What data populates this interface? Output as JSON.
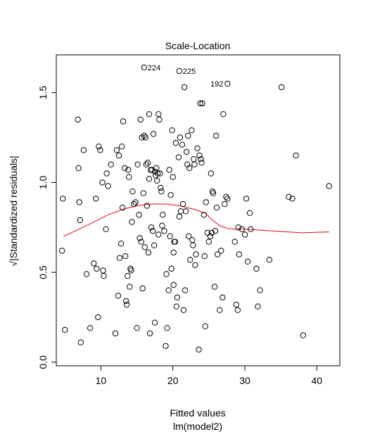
{
  "chart_data": {
    "type": "scatter",
    "title": "Scale-Location",
    "xlabel": "Fitted values",
    "subtitle": "lm(model2)",
    "ylabel": "√|Standardized residuals|",
    "xlim": [
      3.8,
      43.2
    ],
    "ylim": [
      -0.02,
      1.71
    ],
    "xticks": [
      "10",
      "20",
      "30",
      "40"
    ],
    "yticks": [
      "0.0",
      "0.5",
      "1.0",
      "1.5"
    ],
    "xtick_values": [
      10,
      20,
      30,
      40
    ],
    "ytick_values": [
      0.0,
      0.5,
      1.0,
      1.5
    ],
    "grid": false,
    "colors": {
      "points": "#000000",
      "smooth": "#e8202a",
      "frame": "#000000"
    },
    "labeled_points": [
      {
        "label": "224",
        "x": 16.0,
        "y": 1.64
      },
      {
        "label": "225",
        "x": 20.9,
        "y": 1.62
      },
      {
        "label": "192",
        "x": 27.6,
        "y": 1.55
      }
    ],
    "points": [
      [
        4.7,
        0.91
      ],
      [
        4.6,
        0.62
      ],
      [
        5.0,
        0.18
      ],
      [
        6.8,
        1.35
      ],
      [
        6.9,
        1.08
      ],
      [
        7.0,
        0.89
      ],
      [
        7.1,
        0.79
      ],
      [
        7.2,
        0.11
      ],
      [
        7.6,
        1.18
      ],
      [
        8.0,
        0.49
      ],
      [
        8.5,
        0.19
      ],
      [
        9.0,
        0.55
      ],
      [
        9.3,
        0.91
      ],
      [
        9.4,
        0.52
      ],
      [
        9.6,
        0.25
      ],
      [
        9.7,
        1.2
      ],
      [
        9.9,
        1.18
      ],
      [
        10.2,
        1.0
      ],
      [
        10.3,
        0.51
      ],
      [
        10.4,
        0.48
      ],
      [
        10.7,
        0.74
      ],
      [
        10.8,
        1.05
      ],
      [
        11.0,
        0.98
      ],
      [
        11.4,
        1.1
      ],
      [
        12.0,
        0.16
      ],
      [
        12.2,
        1.18
      ],
      [
        12.4,
        0.37
      ],
      [
        12.5,
        1.15
      ],
      [
        12.6,
        0.58
      ],
      [
        12.8,
        0.66
      ],
      [
        12.9,
        1.2
      ],
      [
        13.0,
        0.86
      ],
      [
        13.1,
        1.34
      ],
      [
        13.3,
        1.08
      ],
      [
        13.4,
        0.59
      ],
      [
        13.5,
        0.34
      ],
      [
        13.6,
        0.32
      ],
      [
        13.7,
        0.48
      ],
      [
        13.8,
        1.07
      ],
      [
        13.9,
        1.03
      ],
      [
        14.0,
        0.42
      ],
      [
        14.1,
        0.52
      ],
      [
        14.2,
        0.51
      ],
      [
        14.3,
        0.78
      ],
      [
        14.4,
        0.95
      ],
      [
        14.6,
        0.88
      ],
      [
        14.8,
        0.89
      ],
      [
        15.0,
        0.19
      ],
      [
        15.1,
        1.1
      ],
      [
        15.3,
        0.82
      ],
      [
        15.4,
        0.69
      ],
      [
        15.5,
        1.35
      ],
      [
        15.6,
        0.67
      ],
      [
        15.7,
        1.25
      ],
      [
        15.8,
        0.41
      ],
      [
        15.9,
        0.94
      ],
      [
        16.0,
        1.26
      ],
      [
        16.1,
        0.64
      ],
      [
        16.2,
        1.25
      ],
      [
        16.3,
        1.1
      ],
      [
        16.4,
        0.87
      ],
      [
        16.5,
        1.11
      ],
      [
        16.6,
        0.61
      ],
      [
        16.7,
        1.02
      ],
      [
        16.7,
        1.38
      ],
      [
        16.8,
        0.16
      ],
      [
        16.9,
        1.07
      ],
      [
        17.0,
        0.75
      ],
      [
        17.1,
        1.07
      ],
      [
        17.2,
        0.73
      ],
      [
        17.3,
        1.27
      ],
      [
        17.4,
        0.65
      ],
      [
        17.5,
        1.06
      ],
      [
        17.5,
        0.22
      ],
      [
        17.6,
        1.04
      ],
      [
        17.7,
        1.08
      ],
      [
        17.8,
        1.01
      ],
      [
        17.9,
        1.05
      ],
      [
        18.0,
        1.38
      ],
      [
        18.0,
        0.71
      ],
      [
        18.1,
        1.35
      ],
      [
        18.2,
        1.05
      ],
      [
        18.3,
        0.97
      ],
      [
        18.4,
        0.95
      ],
      [
        18.5,
        0.76
      ],
      [
        18.6,
        0.82
      ],
      [
        18.8,
        0.73
      ],
      [
        19.0,
        0.09
      ],
      [
        19.1,
        0.49
      ],
      [
        19.2,
        0.19
      ],
      [
        19.4,
        0.4
      ],
      [
        19.5,
        1.07
      ],
      [
        19.6,
        0.7
      ],
      [
        19.7,
        0.93
      ],
      [
        19.8,
        0.52
      ],
      [
        19.9,
        1.29
      ],
      [
        20.0,
        1.03
      ],
      [
        20.1,
        0.61
      ],
      [
        20.1,
        0.43
      ],
      [
        20.2,
        0.67
      ],
      [
        20.3,
        0.67
      ],
      [
        20.4,
        1.22
      ],
      [
        20.5,
        0.31
      ],
      [
        20.6,
        0.36
      ],
      [
        20.8,
        1.14
      ],
      [
        20.9,
        0.81
      ],
      [
        21.0,
        1.25
      ],
      [
        21.1,
        0.84
      ],
      [
        21.3,
        1.21
      ],
      [
        21.4,
        0.88
      ],
      [
        21.5,
        0.29
      ],
      [
        21.6,
        1.53
      ],
      [
        21.7,
        0.4
      ],
      [
        21.8,
        0.84
      ],
      [
        21.9,
        1.17
      ],
      [
        22.0,
        1.1
      ],
      [
        22.1,
        1.26
      ],
      [
        22.2,
        0.7
      ],
      [
        22.3,
        1.08
      ],
      [
        22.4,
        0.57
      ],
      [
        22.6,
        1.29
      ],
      [
        22.7,
        0.68
      ],
      [
        22.8,
        0.65
      ],
      [
        22.9,
        1.13
      ],
      [
        23.0,
        1.1
      ],
      [
        23.1,
        0.54
      ],
      [
        23.2,
        0.6
      ],
      [
        23.4,
        1.19
      ],
      [
        23.6,
        0.07
      ],
      [
        23.7,
        1.15
      ],
      [
        23.8,
        1.44
      ],
      [
        23.9,
        1.13
      ],
      [
        24.0,
        1.11
      ],
      [
        24.1,
        1.44
      ],
      [
        24.3,
        0.82
      ],
      [
        24.4,
        0.59
      ],
      [
        24.5,
        0.2
      ],
      [
        24.6,
        0.89
      ],
      [
        24.8,
        0.72
      ],
      [
        25.0,
        0.67
      ],
      [
        25.2,
        0.7
      ],
      [
        25.3,
        1.05
      ],
      [
        25.4,
        0.72
      ],
      [
        25.5,
        0.95
      ],
      [
        25.6,
        0.94
      ],
      [
        25.8,
        0.42
      ],
      [
        25.9,
        0.73
      ],
      [
        26.0,
        1.26
      ],
      [
        26.1,
        0.86
      ],
      [
        26.2,
        0.6
      ],
      [
        26.5,
        0.29
      ],
      [
        26.7,
        0.62
      ],
      [
        26.9,
        0.36
      ],
      [
        27.0,
        1.38
      ],
      [
        27.2,
        0.88
      ],
      [
        27.4,
        0.92
      ],
      [
        27.6,
        0.91
      ],
      [
        28.6,
        0.67
      ],
      [
        28.8,
        0.32
      ],
      [
        29.0,
        0.29
      ],
      [
        29.1,
        0.75
      ],
      [
        29.2,
        0.6
      ],
      [
        29.6,
        0.74
      ],
      [
        30.0,
        0.71
      ],
      [
        30.2,
        0.91
      ],
      [
        30.4,
        0.56
      ],
      [
        30.7,
        0.83
      ],
      [
        30.8,
        0.74
      ],
      [
        31.6,
        0.52
      ],
      [
        31.8,
        0.31
      ],
      [
        32.1,
        0.4
      ],
      [
        33.4,
        0.57
      ],
      [
        35.1,
        1.53
      ],
      [
        36.1,
        0.92
      ],
      [
        36.6,
        0.91
      ],
      [
        37.1,
        1.15
      ],
      [
        38.1,
        0.15
      ],
      [
        41.7,
        0.98
      ]
    ],
    "smooth_line": [
      [
        4.8,
        0.7
      ],
      [
        7.0,
        0.74
      ],
      [
        9.0,
        0.78
      ],
      [
        11.0,
        0.82
      ],
      [
        13.0,
        0.85
      ],
      [
        15.0,
        0.87
      ],
      [
        17.0,
        0.88
      ],
      [
        19.0,
        0.88
      ],
      [
        21.0,
        0.87
      ],
      [
        23.0,
        0.85
      ],
      [
        24.5,
        0.83
      ],
      [
        25.5,
        0.79
      ],
      [
        26.5,
        0.76
      ],
      [
        27.5,
        0.745
      ],
      [
        28.5,
        0.74
      ],
      [
        30.0,
        0.74
      ],
      [
        32.0,
        0.735
      ],
      [
        34.0,
        0.73
      ],
      [
        36.0,
        0.725
      ],
      [
        38.0,
        0.72
      ],
      [
        40.0,
        0.723
      ],
      [
        41.7,
        0.725
      ]
    ]
  }
}
